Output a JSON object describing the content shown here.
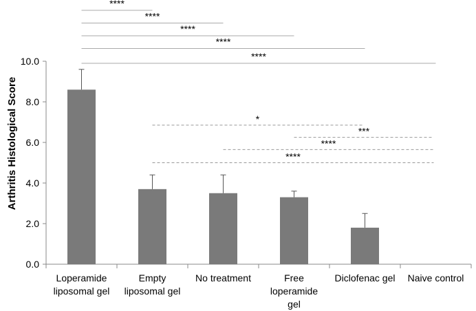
{
  "chart_data": {
    "type": "bar",
    "title": "",
    "xlabel": "",
    "ylabel": "Arthritis Histological Score",
    "ylim": [
      0,
      10
    ],
    "y_ticks": [
      "0.0",
      "2.0",
      "4.0",
      "6.0",
      "8.0",
      "10.0"
    ],
    "grid": false,
    "categories": [
      [
        "Loperamide",
        "liposomal gel"
      ],
      [
        "Empty",
        "liposomal gel"
      ],
      [
        "No treatment"
      ],
      [
        "Free",
        "loperamide",
        "gel"
      ],
      [
        "Diclofenac gel"
      ],
      [
        "Naive control"
      ]
    ],
    "values": [
      8.6,
      3.7,
      3.5,
      3.3,
      1.8,
      0
    ],
    "error_upper": [
      1.0,
      0.7,
      0.9,
      0.3,
      0.7,
      0
    ],
    "colors": {
      "bar": "#7a7a7a",
      "axis": "#888888",
      "solid_bracket": "#aaaaaa",
      "dashed_bracket": "#999999"
    },
    "annotations": {
      "solid": [
        {
          "from": 0,
          "to": 1,
          "level": 10.0,
          "label": "****"
        },
        {
          "from": 0,
          "to": 2,
          "level": 10.0,
          "label": "****"
        },
        {
          "from": 0,
          "to": 3,
          "level": 10.0,
          "label": "****"
        },
        {
          "from": 0,
          "to": 4,
          "level": 10.0,
          "label": "****"
        },
        {
          "from": 0,
          "to": 5,
          "level": 9.9,
          "label": "****"
        }
      ],
      "dashed": [
        {
          "from": 1,
          "to": 4,
          "level": 6.85,
          "label": "*"
        },
        {
          "from": 3,
          "to": 5,
          "level": 6.25,
          "label": "***"
        },
        {
          "from": 2,
          "to": 5,
          "level": 5.65,
          "label": "****"
        },
        {
          "from": 1,
          "to": 5,
          "level": 5.0,
          "label": "****"
        }
      ]
    }
  }
}
